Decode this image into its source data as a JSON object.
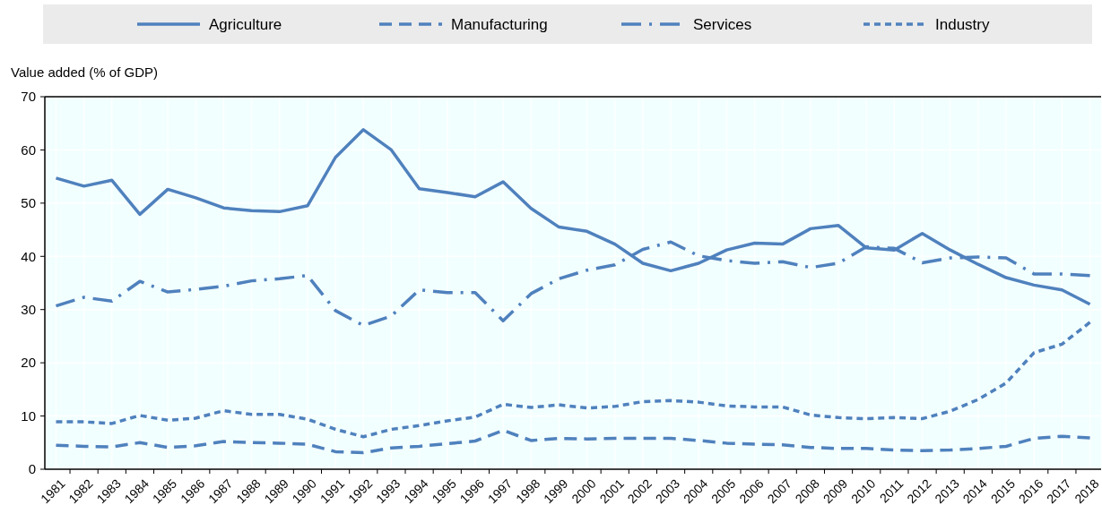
{
  "chart_data": {
    "type": "line",
    "ylabel": "Value added (% of GDP)",
    "categories": [
      "1981",
      "1982",
      "1983",
      "1984",
      "1985",
      "1986",
      "1987",
      "1988",
      "1989",
      "1990",
      "1991",
      "1992",
      "1993",
      "1994",
      "1995",
      "1996",
      "1997",
      "1998",
      "1999",
      "2000",
      "2001",
      "2002",
      "2003",
      "2004",
      "2005",
      "2006",
      "2007",
      "2008",
      "2009",
      "2010",
      "2011",
      "2012",
      "2013",
      "2014",
      "2015",
      "2016",
      "2017",
      "2018"
    ],
    "ylim": [
      0,
      70
    ],
    "yticks": [
      0,
      10,
      20,
      30,
      40,
      50,
      60,
      70
    ],
    "grid": true,
    "legend": "top",
    "marker": "none",
    "series": [
      {
        "name": "Agriculture",
        "color": "#4f81bd",
        "line_style": "solid",
        "values": [
          54.7,
          53.2,
          54.3,
          47.9,
          52.6,
          51.0,
          49.1,
          48.6,
          48.4,
          49.5,
          58.6,
          63.8,
          60.0,
          52.7,
          52.0,
          51.2,
          54.0,
          49.0,
          45.5,
          44.7,
          42.3,
          38.7,
          37.3,
          38.7,
          41.2,
          42.5,
          42.3,
          45.2,
          45.8,
          41.6,
          41.2,
          44.3,
          41.2,
          38.5,
          36.0,
          34.6,
          33.7,
          31.0
        ]
      },
      {
        "name": "Manufacturing",
        "color": "#4f81bd",
        "line_style": "dashed",
        "values": [
          4.5,
          4.3,
          4.2,
          5.0,
          4.1,
          4.4,
          5.2,
          5.0,
          4.9,
          4.7,
          3.3,
          3.1,
          4.0,
          4.3,
          4.8,
          5.3,
          7.3,
          5.4,
          5.8,
          5.7,
          5.8,
          5.8,
          5.8,
          5.4,
          4.9,
          4.7,
          4.6,
          4.1,
          3.9,
          3.9,
          3.6,
          3.5,
          3.6,
          3.9,
          4.3,
          5.8,
          6.2,
          5.9
        ]
      },
      {
        "name": "Services",
        "color": "#4f81bd",
        "line_style": "dashdot",
        "values": [
          30.7,
          32.3,
          31.6,
          35.3,
          33.3,
          33.8,
          34.4,
          35.4,
          35.8,
          36.4,
          29.8,
          27.0,
          28.8,
          33.7,
          33.2,
          33.2,
          27.9,
          33.0,
          35.8,
          37.4,
          38.4,
          41.3,
          42.7,
          40.1,
          39.2,
          38.7,
          39.0,
          37.9,
          38.7,
          41.8,
          41.5,
          38.8,
          39.7,
          39.9,
          39.7,
          36.7,
          36.7,
          36.4
        ]
      },
      {
        "name": "Industry",
        "color": "#4f81bd",
        "line_style": "dotted",
        "values": [
          8.9,
          8.9,
          8.6,
          10.1,
          9.2,
          9.6,
          11.0,
          10.3,
          10.3,
          9.4,
          7.5,
          6.1,
          7.5,
          8.2,
          9.1,
          9.8,
          12.2,
          11.6,
          12.1,
          11.5,
          11.8,
          12.7,
          12.9,
          12.6,
          11.9,
          11.7,
          11.7,
          10.2,
          9.7,
          9.5,
          9.7,
          9.5,
          10.9,
          13.1,
          16.2,
          21.9,
          23.5,
          27.6
        ]
      }
    ]
  }
}
